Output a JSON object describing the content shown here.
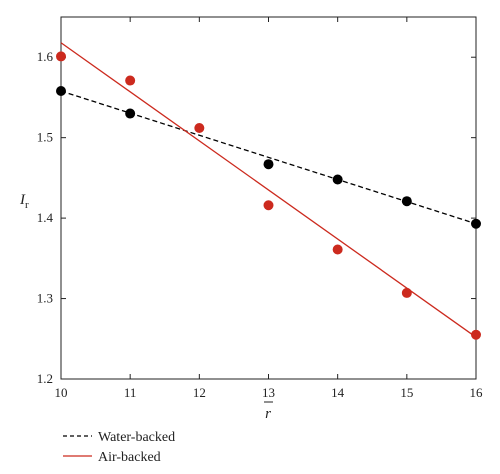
{
  "chart_data": {
    "type": "scatter",
    "x_axis": {
      "label": "r",
      "label_overline": true,
      "min": 10,
      "max": 16,
      "ticks": [
        10,
        11,
        12,
        13,
        14,
        15,
        16
      ],
      "tick_labels": [
        "10",
        "11",
        "12",
        "13",
        "14",
        "15",
        "16"
      ]
    },
    "y_axis": {
      "label": "I",
      "label_subscript": "r",
      "min": 1.2,
      "max": 1.65,
      "ticks": [
        1.2,
        1.3,
        1.4,
        1.5,
        1.6
      ],
      "tick_labels": [
        "1.2",
        "1.3",
        "1.4",
        "1.5",
        "1.6"
      ]
    },
    "grid": false,
    "legend_position": "bottom-left, below plot",
    "series": [
      {
        "name": "Water-backed",
        "color": "#000000",
        "line_style": "dashed",
        "marker": "filled-circle",
        "x": [
          10,
          11,
          13,
          14,
          15,
          16
        ],
        "y": [
          1.558,
          1.53,
          1.467,
          1.448,
          1.421,
          1.393
        ],
        "fit_line": {
          "x": [
            10,
            16
          ],
          "y": [
            1.558,
            1.393
          ]
        }
      },
      {
        "name": "Air-backed",
        "color": "#cc2a1e",
        "line_style": "solid",
        "marker": "filled-circle",
        "x": [
          10,
          11,
          12,
          13,
          14,
          15,
          16
        ],
        "y": [
          1.601,
          1.571,
          1.512,
          1.416,
          1.361,
          1.307,
          1.255
        ],
        "fit_line": {
          "x": [
            10,
            16
          ],
          "y": [
            1.618,
            1.252
          ]
        }
      }
    ]
  }
}
